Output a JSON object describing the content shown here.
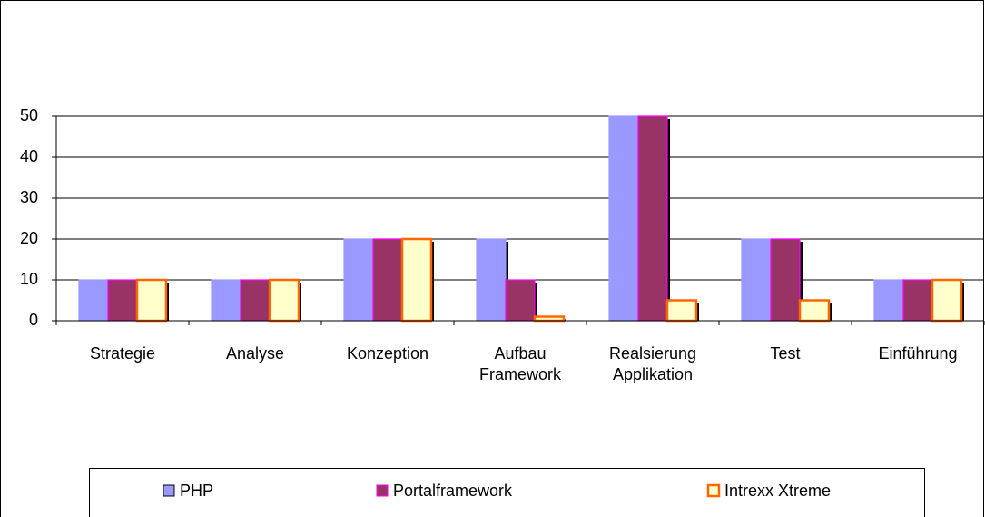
{
  "chart_data": {
    "type": "bar",
    "categories": [
      "Strategie",
      "Analyse",
      "Konzeption",
      "Aufbau Framework",
      "Realsierung Applikation",
      "Test",
      "Einführung"
    ],
    "series": [
      {
        "name": "PHP",
        "color": "#9999ff",
        "values": [
          10,
          10,
          20,
          20,
          50,
          20,
          10
        ]
      },
      {
        "name": "Portalframework",
        "color": "#993366",
        "values": [
          10,
          10,
          20,
          10,
          50,
          20,
          10
        ]
      },
      {
        "name": "Intrexx Xtreme",
        "color": "#ffffcc",
        "values": [
          10,
          10,
          20,
          1,
          5,
          5,
          10
        ]
      }
    ],
    "ylim": [
      0,
      50
    ],
    "yticks": [
      0,
      10,
      20,
      30,
      40,
      50
    ],
    "grid": true,
    "legend": "bottom"
  }
}
